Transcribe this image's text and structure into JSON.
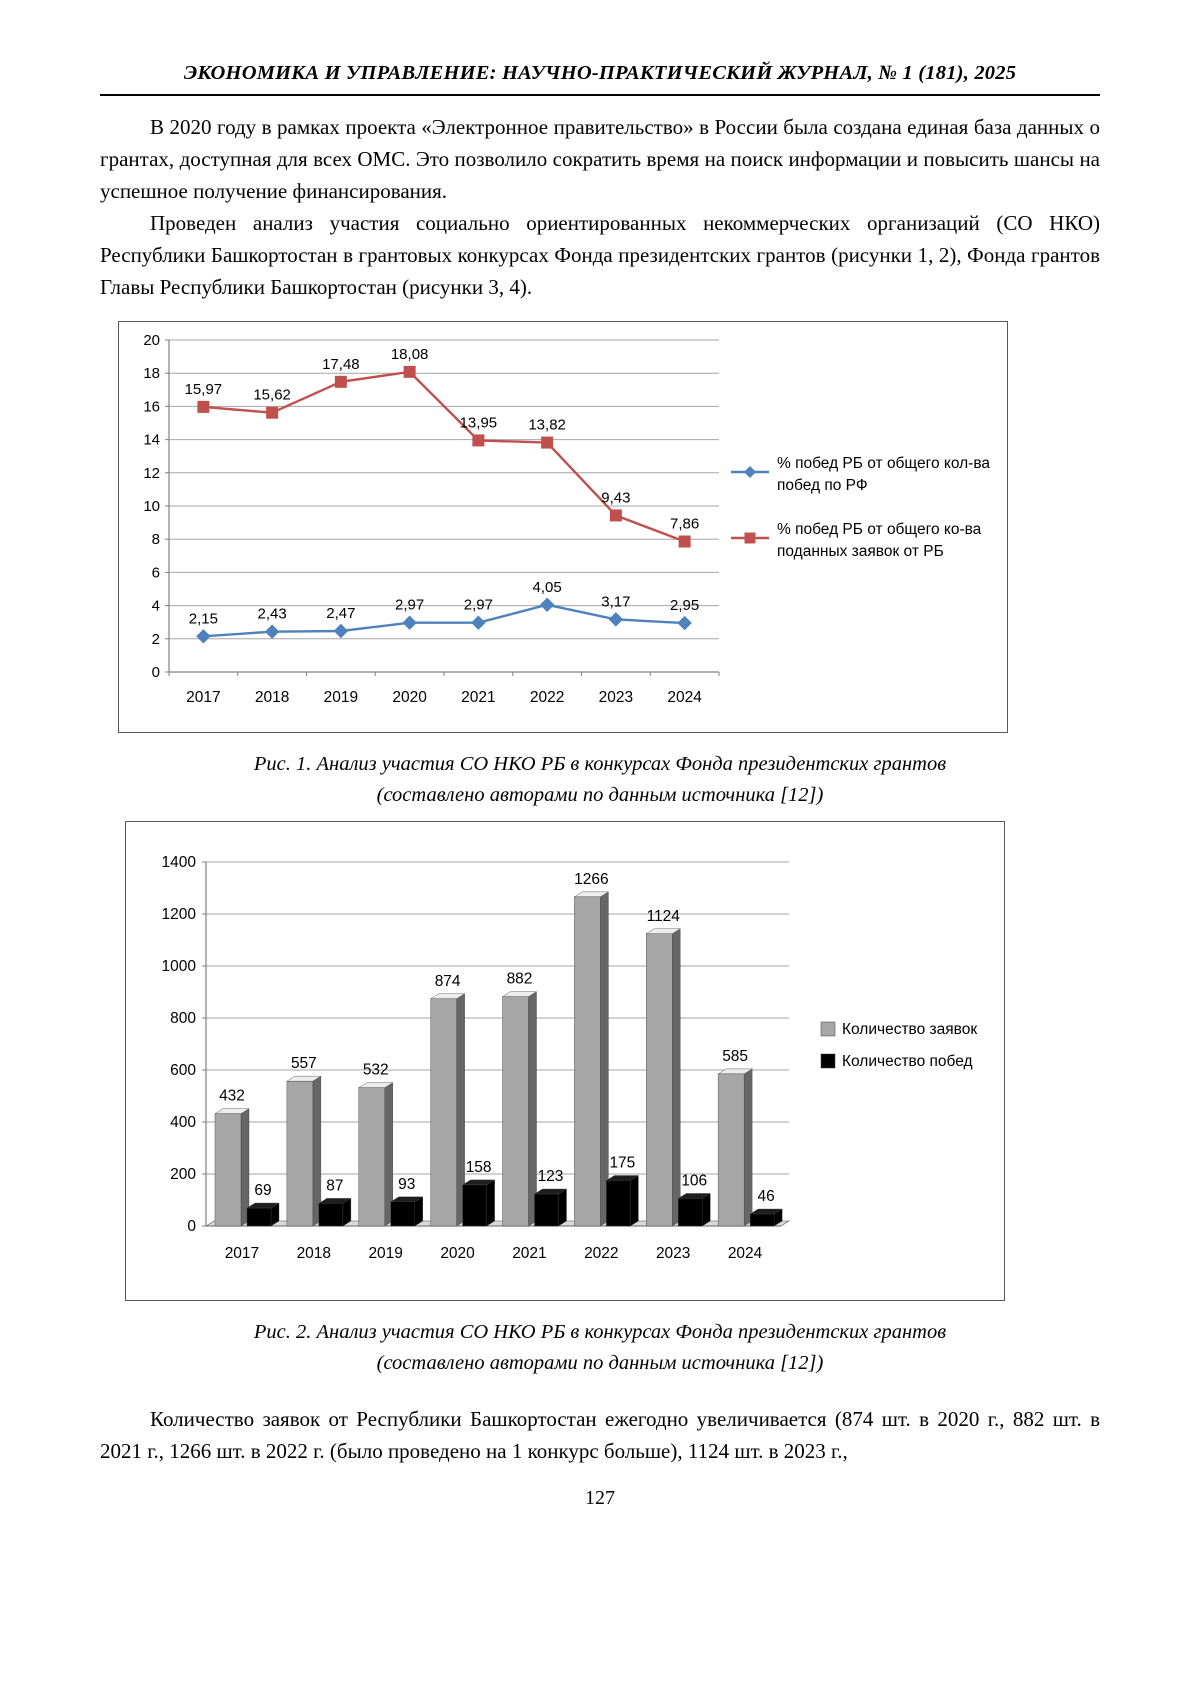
{
  "page": {
    "header": "ЭКОНОМИКА И УПРАВЛЕНИЕ: НАУЧНО-ПРАКТИЧЕСКИЙ ЖУРНАЛ, № 1 (181), 2025",
    "paragraphs": {
      "p1": "В 2020 году в рамках проекта «Электронное правительство» в России была создана единая база данных о грантах, доступная для всех ОМС. Это позволило сократить время на поиск информации и повысить шансы на успешное получение финансирования.",
      "p2": "Проведен анализ участия социально ориентированных некоммерческих организаций (СО НКО) Республики Башкортостан в грантовых конкурсах Фонда президентских грантов (рисунки 1, 2), Фонда грантов Главы Республики Башкортостан (рисунки 3, 4).",
      "p3": "Количество заявок от Республики Башкортостан ежегодно увеличивается (874 шт. в 2020 г., 882 шт. в 2021 г., 1266 шт. в 2022 г. (было проведено на 1 конкурс больше), 1124 шт. в 2023 г.,"
    },
    "captions": {
      "fig1_line1": "Рис. 1. Анализ участия СО НКО РБ в конкурсах Фонда президентских грантов",
      "fig1_line2": "(составлено авторами по данным источника [12])",
      "fig2_line1": "Рис. 2. Анализ участия СО НКО РБ в конкурсах Фонда президентских грантов",
      "fig2_line2": "(составлено авторами по данным источника [12])"
    },
    "page_number": "127"
  },
  "chart_data": [
    {
      "type": "line",
      "title": "",
      "categories": [
        "2017",
        "2018",
        "2019",
        "2020",
        "2021",
        "2022",
        "2023",
        "2024"
      ],
      "series": [
        {
          "name": "% побед РБ от общего кол-ва побед по РФ",
          "color": "#4F81BD",
          "marker": "diamond",
          "values": [
            2.15,
            2.43,
            2.47,
            2.97,
            2.97,
            4.05,
            3.17,
            2.95
          ]
        },
        {
          "name": "% побед РБ от общего ко-ва поданных заявок от РБ",
          "color": "#C0504D",
          "marker": "square",
          "values": [
            15.97,
            15.62,
            17.48,
            18.08,
            13.95,
            13.82,
            9.43,
            7.86
          ]
        }
      ],
      "xlabel": "",
      "ylabel": "",
      "ylim": [
        0,
        20
      ],
      "ytick_step": 2,
      "grid": true,
      "legend_position": "right",
      "decimal_separator": ","
    },
    {
      "type": "bar",
      "title": "",
      "categories": [
        "2017",
        "2018",
        "2019",
        "2020",
        "2021",
        "2022",
        "2023",
        "2024"
      ],
      "series": [
        {
          "name": "Количество заявок",
          "color": "#A6A6A6",
          "values": [
            432,
            557,
            532,
            874,
            882,
            1266,
            1124,
            585
          ]
        },
        {
          "name": "Количество побед",
          "color": "#000000",
          "values": [
            69,
            87,
            93,
            158,
            123,
            175,
            106,
            46
          ]
        }
      ],
      "xlabel": "",
      "ylabel": "",
      "ylim": [
        0,
        1400
      ],
      "ytick_step": 200,
      "grid": true,
      "legend_position": "right",
      "style": "3d-effect"
    }
  ]
}
